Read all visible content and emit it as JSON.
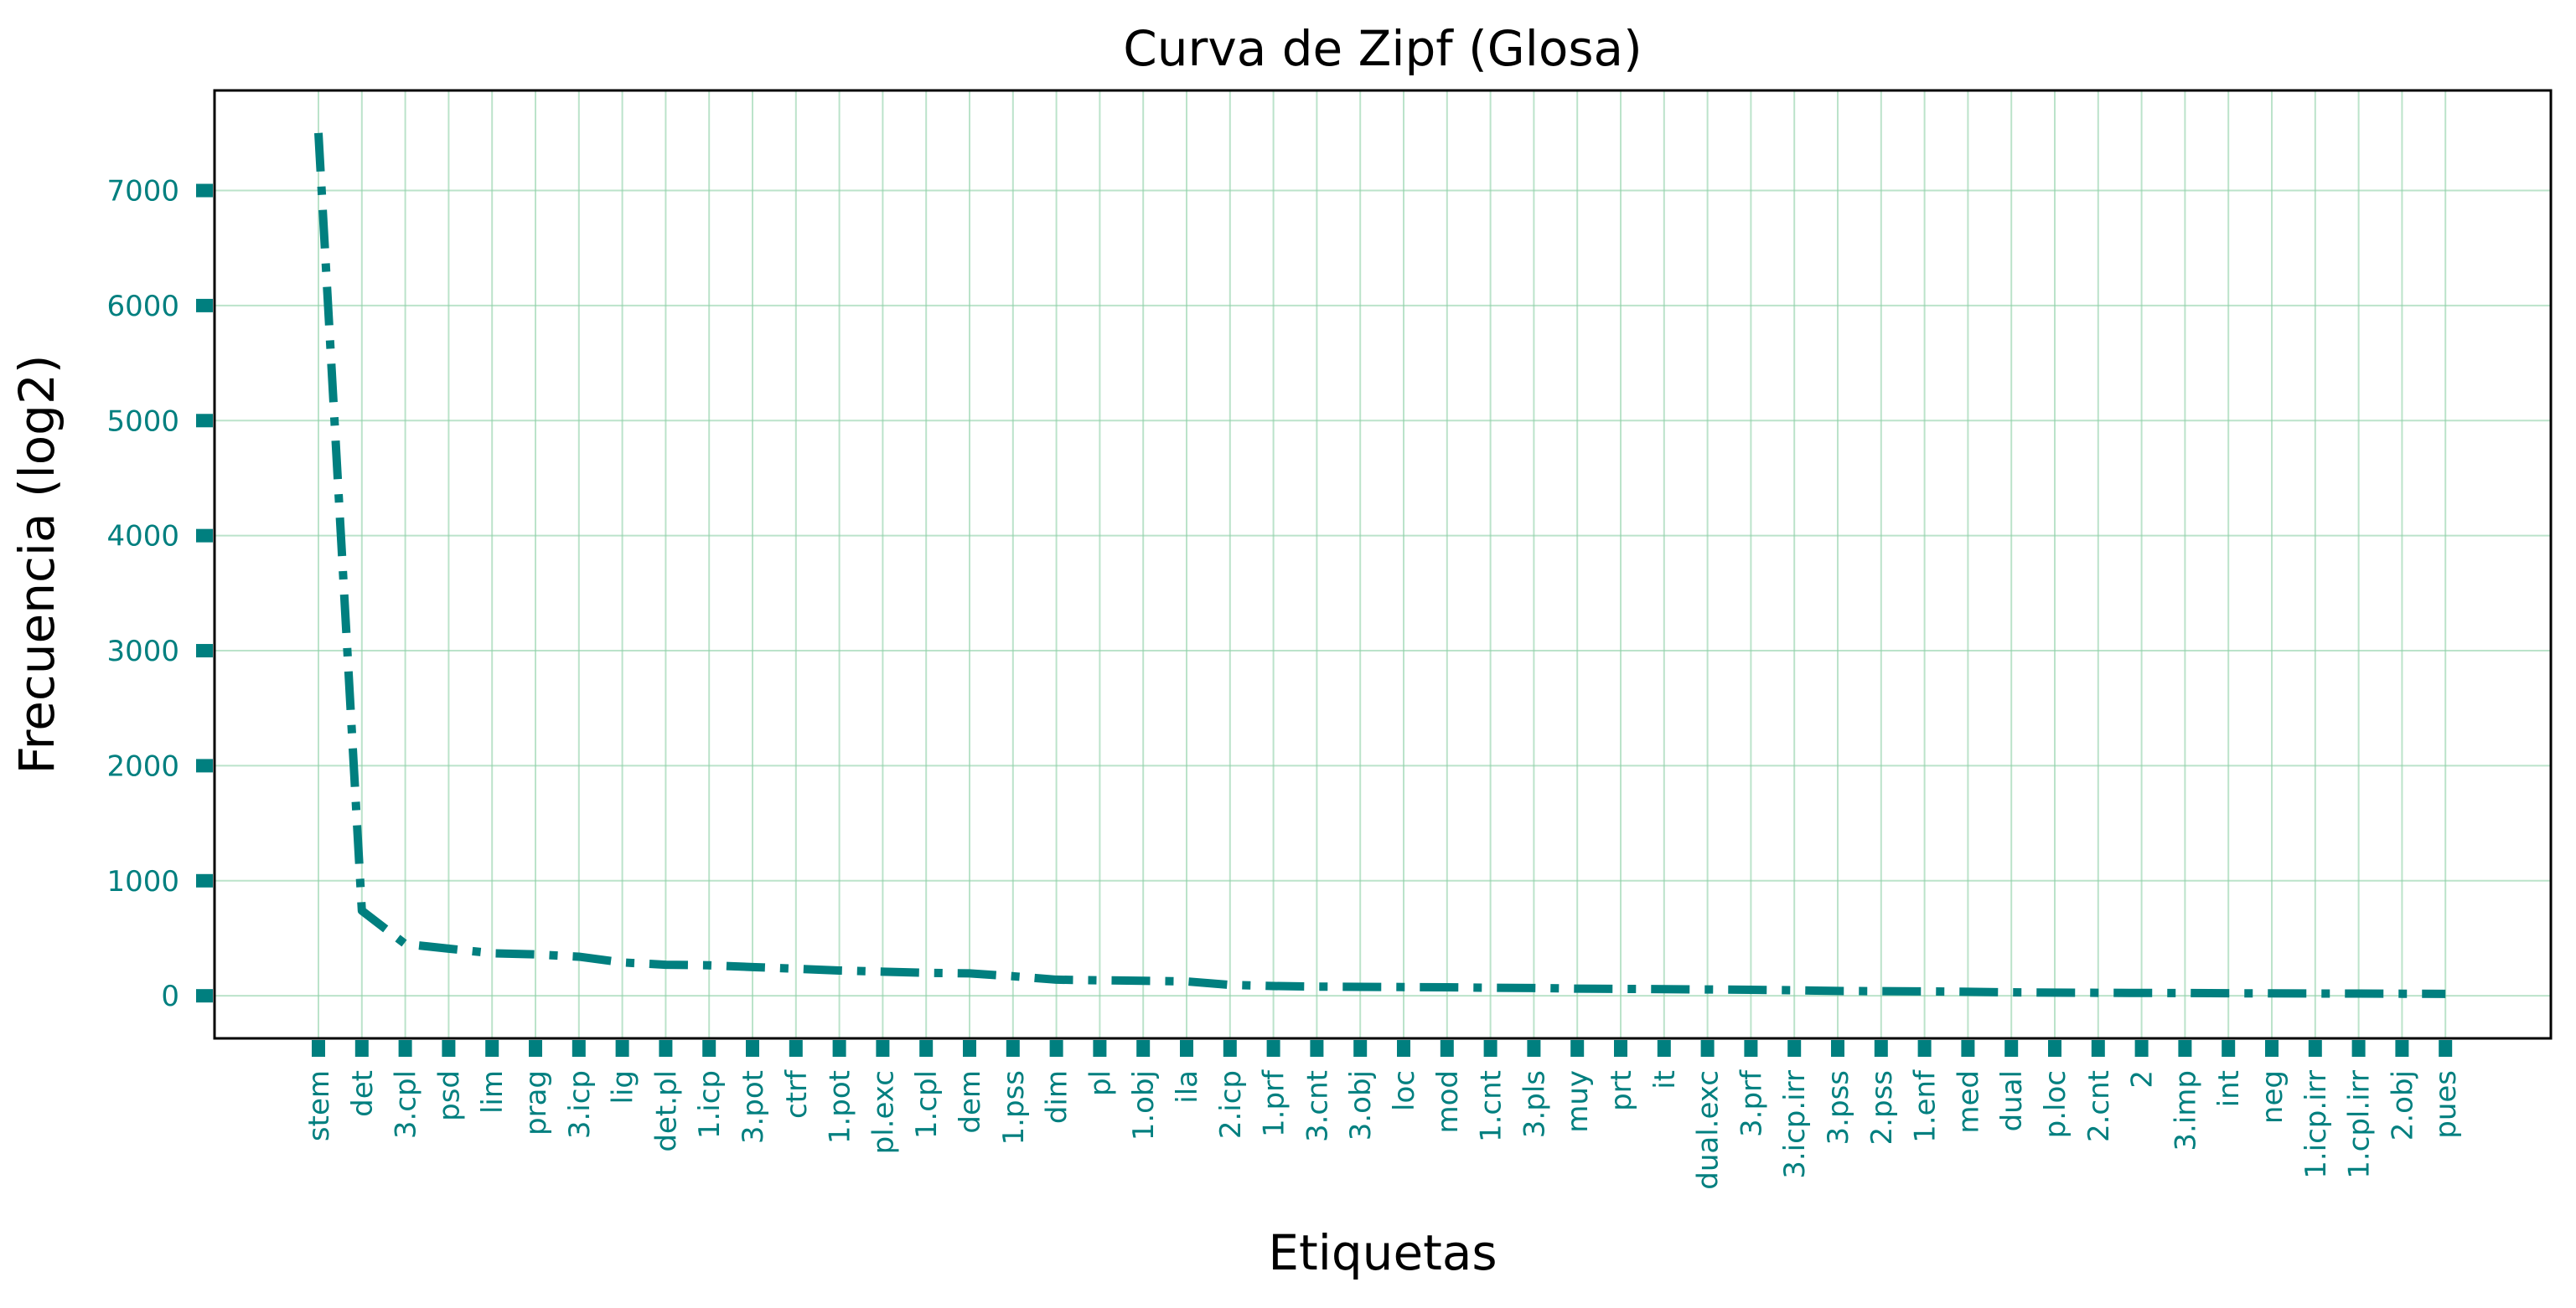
{
  "chart_data": {
    "type": "line",
    "title": "Curva de Zipf (Glosa)",
    "xlabel": "Etiquetas",
    "ylabel": "Frecuencia (log2)",
    "categories": [
      "stem",
      "det",
      "3.cpl",
      "psd",
      "lim",
      "prag",
      "3.icp",
      "lig",
      "det.pl",
      "1.icp",
      "3.pot",
      "ctrf",
      "1.pot",
      "pl.exc",
      "1.cpl",
      "dem",
      "1.pss",
      "dim",
      "pl",
      "1.obj",
      "ila",
      "2.icp",
      "1.prf",
      "3.cnt",
      "3.obj",
      "loc",
      "mod",
      "1.cnt",
      "3.pls",
      "muy",
      "prt",
      "it",
      "dual.exc",
      "3.prf",
      "3.icp.irr",
      "3.pss",
      "2.pss",
      "1.enf",
      "med",
      "dual",
      "p.loc",
      "2.cnt",
      "2",
      "3.imp",
      "int",
      "neg",
      "1.icp.irr",
      "1.cpl.irr",
      "2.obj",
      "pues"
    ],
    "series": [
      {
        "values": [
          7500,
          740,
          450,
          410,
          370,
          360,
          340,
          290,
          270,
          265,
          250,
          235,
          220,
          210,
          200,
          195,
          170,
          140,
          135,
          130,
          125,
          95,
          85,
          80,
          78,
          76,
          74,
          70,
          68,
          62,
          60,
          58,
          55,
          52,
          48,
          42,
          40,
          38,
          35,
          30,
          28,
          26,
          25,
          24,
          22,
          21,
          20,
          19,
          18,
          17
        ]
      }
    ],
    "yticks": [
      0,
      1000,
      2000,
      3000,
      4000,
      5000,
      6000,
      7000
    ],
    "ylim": [
      -370,
      7870
    ],
    "grid": true,
    "legend": "none",
    "colors": {
      "line": "#007f7f",
      "tick": "#007f7f",
      "grid": "#8fd1a8",
      "frame": "#000000"
    }
  }
}
